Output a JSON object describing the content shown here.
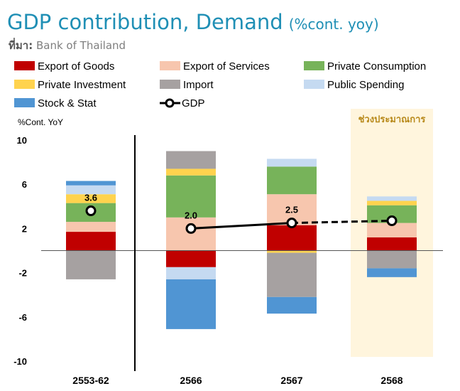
{
  "header": {
    "title": "GDP contribution, Demand",
    "unit": "(%cont. yoy)",
    "source_label": "ที่มา:",
    "source_value": "Bank of Thailand"
  },
  "chart_data": {
    "type": "bar",
    "stacked": true,
    "categories": [
      "2553-62",
      "2566",
      "2567",
      "2568"
    ],
    "ylabel": "%Cont. YoY",
    "ylim": [
      -10,
      10
    ],
    "yticks": [
      10,
      6,
      2,
      -2,
      -6,
      -10
    ],
    "forecast_label": "ช่วงประมาณการ",
    "forecast_category": "2568",
    "series": [
      {
        "name": "Export of Goods",
        "color": "#c00000",
        "values": [
          1.7,
          -1.5,
          2.3,
          1.2
        ]
      },
      {
        "name": "Export of Services",
        "color": "#f7c6ae",
        "values": [
          0.9,
          3.0,
          2.8,
          1.3
        ]
      },
      {
        "name": "Private Consumption",
        "color": "#77b35a",
        "values": [
          1.7,
          3.8,
          2.5,
          1.6
        ]
      },
      {
        "name": "Private Investment",
        "color": "#ffd34e",
        "values": [
          0.8,
          0.6,
          -0.2,
          0.4
        ]
      },
      {
        "name": "Import",
        "color": "#a6a1a1",
        "values": [
          -2.6,
          1.6,
          -4.0,
          -1.6
        ]
      },
      {
        "name": "Public Spending",
        "color": "#c5daf1",
        "values": [
          0.8,
          -1.1,
          0.7,
          0.4
        ]
      },
      {
        "name": "Stock & Stat",
        "color": "#5095d3",
        "values": [
          0.4,
          -4.5,
          -1.5,
          -0.8
        ]
      }
    ],
    "gdp": {
      "name": "GDP",
      "values": [
        3.6,
        2.0,
        2.5,
        2.7
      ],
      "labels": [
        "3.6",
        "2.0",
        "2.5",
        ""
      ]
    }
  }
}
